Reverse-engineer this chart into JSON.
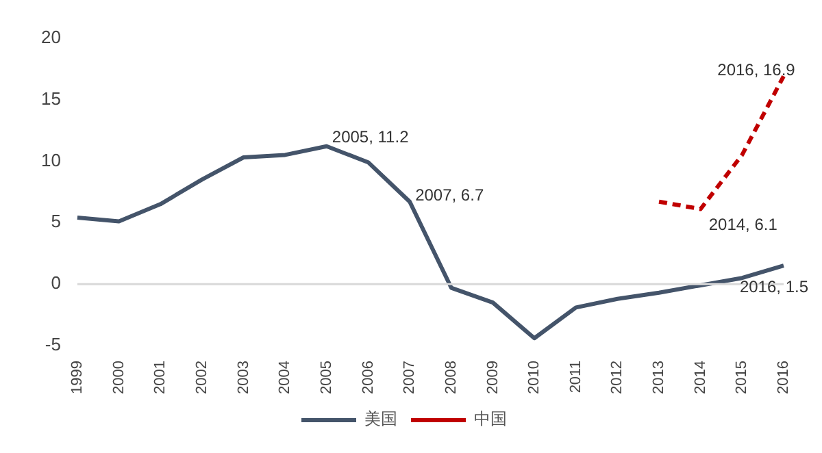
{
  "chart_data": {
    "type": "line",
    "categories": [
      "1999",
      "2000",
      "2001",
      "2002",
      "2003",
      "2004",
      "2005",
      "2006",
      "2007",
      "2008",
      "2009",
      "2010",
      "2011",
      "2012",
      "2013",
      "2014",
      "2015",
      "2016"
    ],
    "series": [
      {
        "name": "美国",
        "color": "#44546a",
        "line_style": "solid",
        "values": [
          5.4,
          5.1,
          6.5,
          8.5,
          10.3,
          10.5,
          11.2,
          9.9,
          6.7,
          -0.3,
          -1.5,
          -4.4,
          -1.9,
          -1.2,
          -0.7,
          -0.1,
          0.5,
          1.5
        ]
      },
      {
        "name": "中国",
        "color": "#c00000",
        "line_style": "dashed",
        "values": [
          null,
          null,
          null,
          null,
          null,
          null,
          null,
          null,
          null,
          null,
          null,
          null,
          null,
          null,
          6.7,
          6.1,
          10.5,
          16.9
        ]
      }
    ],
    "ref_lines": [
      {
        "axis": "y",
        "value": 0,
        "color": "#d9d9d9"
      }
    ],
    "ylim": [
      -5,
      20
    ],
    "yticks": [
      -5,
      0,
      5,
      10,
      15,
      20
    ],
    "grid": false,
    "legend": "bottom",
    "marker": "none",
    "annotations": [
      {
        "text": "2005, 11.2",
        "x": "2005",
        "y": 11.2
      },
      {
        "text": "2007, 6.7",
        "x": "2007",
        "y": 6.7
      },
      {
        "text": "2014, 6.1",
        "x": "2014",
        "y": 6.1
      },
      {
        "text": "2016, 16.9",
        "x": "2016",
        "y": 16.9
      },
      {
        "text": "2016, 1.5",
        "x": "2016",
        "y": 1.5
      }
    ]
  }
}
